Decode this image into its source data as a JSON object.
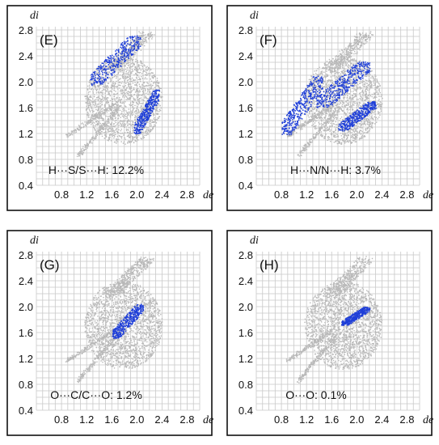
{
  "chart_data": [
    {
      "type": "scatter",
      "panel": "(E)",
      "annotation": "H···S/S···H: 12.2%",
      "xlabel": "de",
      "ylabel": "di",
      "xlim": [
        0.4,
        3.0
      ],
      "ylim": [
        0.4,
        2.85
      ],
      "x_ticks": [
        "0.8",
        "1.2",
        "1.6",
        "2.0",
        "2.4",
        "2.8"
      ],
      "y_ticks": [
        "0.4",
        "0.8",
        "1.2",
        "1.6",
        "2.0",
        "2.4",
        "2.8"
      ],
      "grid": true,
      "highlight_color": "#1f3fd8",
      "background_color": "#b8b8b8",
      "highlight_regions": [
        {
          "x": [
            1.25,
            2.05
          ],
          "y": [
            1.95,
            2.72
          ]
        },
        {
          "x": [
            1.95,
            2.35
          ],
          "y": [
            1.2,
            1.88
          ]
        }
      ]
    },
    {
      "type": "scatter",
      "panel": "(F)",
      "annotation": "H···N/N···H: 3.7%",
      "xlabel": "de",
      "ylabel": "di",
      "xlim": [
        0.4,
        3.0
      ],
      "ylim": [
        0.4,
        2.85
      ],
      "x_ticks": [
        "0.8",
        "1.2",
        "1.6",
        "2.0",
        "2.4",
        "2.8"
      ],
      "y_ticks": [
        "0.4",
        "0.8",
        "1.2",
        "1.6",
        "2.0",
        "2.4",
        "2.8"
      ],
      "grid": true,
      "highlight_color": "#1f3fd8",
      "background_color": "#b8b8b8",
      "highlight_regions": [
        {
          "x": [
            0.8,
            1.45
          ],
          "y": [
            1.18,
            2.1
          ]
        },
        {
          "x": [
            1.35,
            2.2
          ],
          "y": [
            1.6,
            2.32
          ]
        },
        {
          "x": [
            1.7,
            2.3
          ],
          "y": [
            1.25,
            1.7
          ]
        }
      ]
    },
    {
      "type": "scatter",
      "panel": "(G)",
      "annotation": "O···C/C···O: 1.2%",
      "xlabel": "de",
      "ylabel": "di",
      "xlim": [
        0.4,
        3.0
      ],
      "ylim": [
        0.4,
        2.85
      ],
      "x_ticks": [
        "0.8",
        "1.2",
        "1.6",
        "2.0",
        "2.4",
        "2.8"
      ],
      "y_ticks": [
        "0.4",
        "0.8",
        "1.2",
        "1.6",
        "2.0",
        "2.4",
        "2.8"
      ],
      "grid": true,
      "highlight_color": "#1f3fd8",
      "background_color": "#b8b8b8",
      "highlight_regions": [
        {
          "x": [
            1.6,
            2.1
          ],
          "y": [
            1.52,
            2.05
          ]
        }
      ]
    },
    {
      "type": "scatter",
      "panel": "(H)",
      "annotation": "O···O: 0.1%",
      "xlabel": "de",
      "ylabel": "di",
      "xlim": [
        0.4,
        3.0
      ],
      "ylim": [
        0.4,
        2.85
      ],
      "x_ticks": [
        "0.8",
        "1.2",
        "1.6",
        "2.0",
        "2.4",
        "2.8"
      ],
      "y_ticks": [
        "0.4",
        "0.8",
        "1.2",
        "1.6",
        "2.0",
        "2.4",
        "2.8"
      ],
      "grid": true,
      "highlight_color": "#1f3fd8",
      "background_color": "#b8b8b8",
      "highlight_regions": [
        {
          "x": [
            1.75,
            2.2
          ],
          "y": [
            1.72,
            2.0
          ]
        }
      ]
    }
  ]
}
